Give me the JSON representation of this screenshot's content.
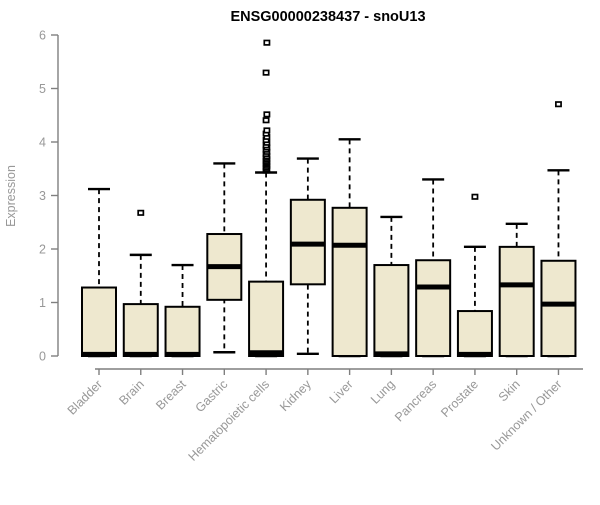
{
  "chart_data": {
    "type": "box",
    "title": "ENSG00000238437 - snoU13",
    "ylabel": "Expression",
    "xlabel": "",
    "ylim": [
      0,
      6
    ],
    "yticks": [
      0,
      1,
      2,
      3,
      4,
      5,
      6
    ],
    "grid": false,
    "legend_position": "none",
    "categories": [
      "Bladder",
      "Brain",
      "Breast",
      "Gastric",
      "Hematopoietic cells",
      "Kidney",
      "Liver",
      "Lung",
      "Pancreas",
      "Prostate",
      "Skin",
      "Unknown / Other"
    ],
    "boxes": [
      {
        "category": "Bladder",
        "whisker_low": 0,
        "q1": 0,
        "median": 0.03,
        "q3": 1.28,
        "whisker_high": 3.12,
        "outliers": []
      },
      {
        "category": "Brain",
        "whisker_low": 0,
        "q1": 0,
        "median": 0.03,
        "q3": 0.97,
        "whisker_high": 1.89,
        "outliers": [
          2.68
        ]
      },
      {
        "category": "Breast",
        "whisker_low": 0,
        "q1": 0,
        "median": 0.03,
        "q3": 0.92,
        "whisker_high": 1.7,
        "outliers": []
      },
      {
        "category": "Gastric",
        "whisker_low": 0.07,
        "q1": 1.05,
        "median": 1.67,
        "q3": 2.28,
        "whisker_high": 3.6,
        "outliers": []
      },
      {
        "category": "Hematopoietic cells",
        "whisker_low": 0,
        "q1": 0,
        "median": 0.06,
        "q3": 1.39,
        "whisker_high": 3.43,
        "outliers": [
          3.47,
          3.5,
          3.53,
          3.56,
          3.59,
          3.62,
          3.65,
          3.68,
          3.71,
          3.74,
          3.78,
          3.82,
          3.86,
          3.9,
          3.94,
          3.99,
          4.04,
          4.1,
          4.16,
          4.22,
          4.41,
          4.52,
          5.3,
          5.86
        ]
      },
      {
        "category": "Kidney",
        "whisker_low": 0.04,
        "q1": 1.34,
        "median": 2.09,
        "q3": 2.92,
        "whisker_high": 3.69,
        "outliers": []
      },
      {
        "category": "Liver",
        "whisker_low": 0,
        "q1": 0,
        "median": 2.07,
        "q3": 2.77,
        "whisker_high": 4.05,
        "outliers": []
      },
      {
        "category": "Lung",
        "whisker_low": 0,
        "q1": 0,
        "median": 0.04,
        "q3": 1.7,
        "whisker_high": 2.6,
        "outliers": []
      },
      {
        "category": "Pancreas",
        "whisker_low": 0,
        "q1": 0,
        "median": 1.29,
        "q3": 1.79,
        "whisker_high": 3.3,
        "outliers": []
      },
      {
        "category": "Prostate",
        "whisker_low": 0,
        "q1": 0,
        "median": 0.03,
        "q3": 0.84,
        "whisker_high": 2.04,
        "outliers": [
          2.98
        ]
      },
      {
        "category": "Skin",
        "whisker_low": 0,
        "q1": 0,
        "median": 1.33,
        "q3": 2.04,
        "whisker_high": 2.47,
        "outliers": []
      },
      {
        "category": "Unknown / Other",
        "whisker_low": 0,
        "q1": 0,
        "median": 0.97,
        "q3": 1.78,
        "whisker_high": 3.47,
        "outliers": [
          4.71
        ]
      }
    ],
    "style": {
      "background": "#FFFFFF",
      "box_fill": "#EEE8CF",
      "box_stroke": "#000000",
      "median_color": "#000000",
      "whisker_color": "#000000",
      "outlier_color": "#000000",
      "axis_color": "#7F7F7F",
      "tick_label_color": "#989898",
      "title_color": "#000000"
    }
  }
}
